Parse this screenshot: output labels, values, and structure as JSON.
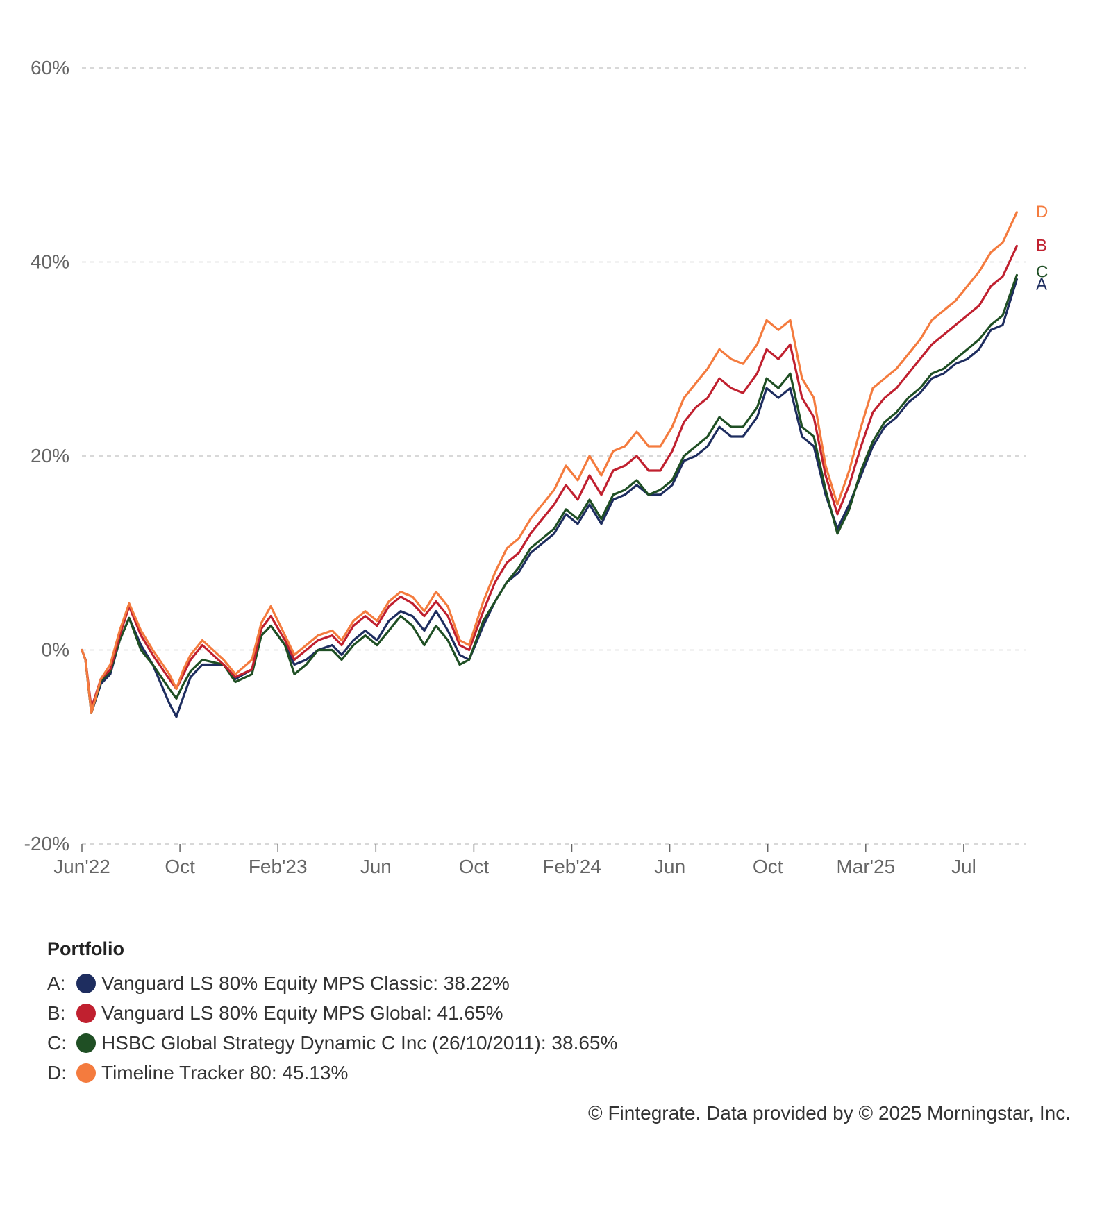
{
  "chart_data": {
    "type": "line",
    "ylabel": "",
    "xlabel": "",
    "ylim": [
      -20,
      60
    ],
    "y_ticks": [
      "60%",
      "40%",
      "20%",
      "0%",
      "-20%"
    ],
    "y_tick_values": [
      60,
      40,
      20,
      0,
      -20
    ],
    "x_ticks": [
      "Jun'22",
      "Oct",
      "Feb'23",
      "Jun",
      "Oct",
      "Feb'24",
      "Jun",
      "Oct",
      "Mar'25",
      "Jul"
    ],
    "grid": true,
    "x": [
      0,
      0.15,
      0.4,
      0.8,
      1.2,
      1.6,
      2.0,
      2.5,
      3.0,
      3.7,
      4.0,
      4.3,
      4.6,
      5.1,
      6.0,
      6.5,
      7.2,
      7.6,
      8.0,
      8.6,
      9.0,
      9.5,
      10.0,
      10.6,
      11.0,
      11.5,
      12.0,
      12.5,
      13.0,
      13.5,
      14.0,
      14.5,
      15.0,
      15.5,
      16.0,
      16.4,
      17.0,
      17.5,
      18.0,
      18.5,
      19.0,
      19.5,
      20.0,
      20.5,
      21.0,
      21.5,
      22.0,
      22.5,
      23.0,
      23.5,
      24.0,
      24.5,
      25.0,
      25.5,
      26.0,
      26.5,
      27.0,
      27.5,
      28.0,
      28.6,
      29.0,
      29.5,
      30.0,
      30.5,
      31.0,
      31.5,
      32.0,
      32.5,
      33.0,
      33.5,
      34.0,
      34.5,
      35.0,
      35.5,
      36.0,
      36.5,
      37.0,
      37.5,
      38.0,
      38.5,
      39.0,
      39.6
    ],
    "series": [
      {
        "key": "A",
        "name": "Vanguard LS 80% Equity MPS Classic",
        "color": "#1e2d5f",
        "final": "38.22%",
        "values": [
          0,
          -1,
          -6.5,
          -3.5,
          -2.5,
          1,
          3.3,
          0.5,
          -1.5,
          -5.5,
          -6.9,
          -4.8,
          -2.8,
          -1.5,
          -1.5,
          -3,
          -2,
          1.5,
          2.5,
          0.5,
          -1.5,
          -1,
          0,
          0.5,
          -0.5,
          1,
          2,
          1,
          3,
          4,
          3.5,
          2,
          4,
          2,
          -0.5,
          -1,
          2.5,
          5,
          7,
          8,
          10,
          11,
          12,
          14,
          13,
          15,
          13,
          15.5,
          16,
          17,
          16,
          16,
          17,
          19.5,
          20,
          21,
          23,
          22,
          22,
          24,
          27,
          26,
          27,
          22,
          21,
          16,
          12.5,
          15,
          18,
          21,
          23,
          24,
          25.5,
          26.5,
          28,
          28.5,
          29.5,
          30,
          31,
          33,
          33.5,
          38.22
        ]
      },
      {
        "key": "B",
        "name": "Vanguard LS 80% Equity MPS Global",
        "color": "#c0202f",
        "final": "41.65%",
        "values": [
          0,
          -1,
          -6,
          -3,
          -2,
          1.5,
          4.5,
          1.5,
          -0.5,
          -3,
          -4,
          -2.5,
          -1,
          0.5,
          -1.5,
          -2.8,
          -2,
          2.2,
          3.5,
          1,
          -1,
          0,
          1,
          1.5,
          0.5,
          2.5,
          3.5,
          2.5,
          4.5,
          5.5,
          4.8,
          3.5,
          5,
          3.5,
          0.5,
          0,
          4,
          7,
          9,
          10,
          12,
          13.5,
          15,
          17,
          15.5,
          18,
          16,
          18.5,
          19,
          20,
          18.5,
          18.5,
          20.5,
          23.5,
          25,
          26,
          28,
          27,
          26.5,
          28.5,
          31,
          30,
          31.5,
          26,
          24,
          18,
          14,
          17,
          21,
          24.5,
          26,
          27,
          28.5,
          30,
          31.5,
          32.5,
          33.5,
          34.5,
          35.5,
          37.5,
          38.5,
          41.65
        ]
      },
      {
        "key": "C",
        "name": "HSBC Global Strategy Dynamic C Inc (26/10/2011)",
        "color": "#1f4f24",
        "final": "38.65%",
        "values": [
          0,
          -1,
          -6.5,
          -3.2,
          -2.2,
          1,
          3.3,
          0,
          -1.5,
          -4,
          -5,
          -3.5,
          -2.2,
          -1,
          -1.5,
          -3.3,
          -2.5,
          1.5,
          2.5,
          0.5,
          -2.5,
          -1.5,
          0,
          0,
          -1,
          0.5,
          1.5,
          0.5,
          2,
          3.5,
          2.5,
          0.5,
          2.5,
          1,
          -1.5,
          -1,
          3,
          5,
          7,
          8.5,
          10.5,
          11.5,
          12.5,
          14.5,
          13.5,
          15.5,
          13.5,
          16,
          16.5,
          17.5,
          16,
          16.5,
          17.5,
          20,
          21,
          22,
          24,
          23,
          23,
          25,
          28,
          27,
          28.5,
          23,
          22,
          16.5,
          12,
          14.5,
          18.5,
          21.5,
          23.5,
          24.5,
          26,
          27,
          28.5,
          29,
          30,
          31,
          32,
          33.5,
          34.5,
          38.65
        ]
      },
      {
        "key": "D",
        "name": "Timeline Tracker 80",
        "color": "#f47b3e",
        "final": "45.13%",
        "values": [
          0,
          -1,
          -6.5,
          -3,
          -1.5,
          2,
          4.8,
          2,
          0,
          -2.5,
          -4,
          -2,
          -0.5,
          1,
          -1,
          -2.5,
          -1,
          2.8,
          4.5,
          1.5,
          -0.5,
          0.5,
          1.5,
          2,
          1,
          3,
          4,
          3,
          5,
          6,
          5.5,
          4,
          6,
          4.5,
          1,
          0.5,
          5,
          8,
          10.5,
          11.5,
          13.5,
          15,
          16.5,
          19,
          17.5,
          20,
          18,
          20.5,
          21,
          22.5,
          21,
          21,
          23,
          26,
          27.5,
          29,
          31,
          30,
          29.5,
          31.5,
          34,
          33,
          34,
          28,
          26,
          19,
          15,
          18.5,
          23,
          27,
          28,
          29,
          30.5,
          32,
          34,
          35,
          36,
          37.5,
          39,
          41,
          42,
          45.13
        ]
      }
    ]
  },
  "legend": {
    "title": "Portfolio",
    "items": [
      {
        "key": "A:",
        "color": "#1e2d5f",
        "text": "Vanguard LS 80% Equity MPS Classic: 38.22%"
      },
      {
        "key": "B:",
        "color": "#c0202f",
        "text": "Vanguard LS 80% Equity MPS Global: 41.65%"
      },
      {
        "key": "C:",
        "color": "#1f4f24",
        "text": "HSBC Global Strategy Dynamic C Inc (26/10/2011): 38.65%"
      },
      {
        "key": "D:",
        "color": "#f47b3e",
        "text": "Timeline Tracker 80: 45.13%"
      }
    ]
  },
  "end_labels": [
    "D",
    "B",
    "C",
    "A"
  ],
  "credit": "© Fintegrate. Data provided by © 2025 Morningstar, Inc."
}
